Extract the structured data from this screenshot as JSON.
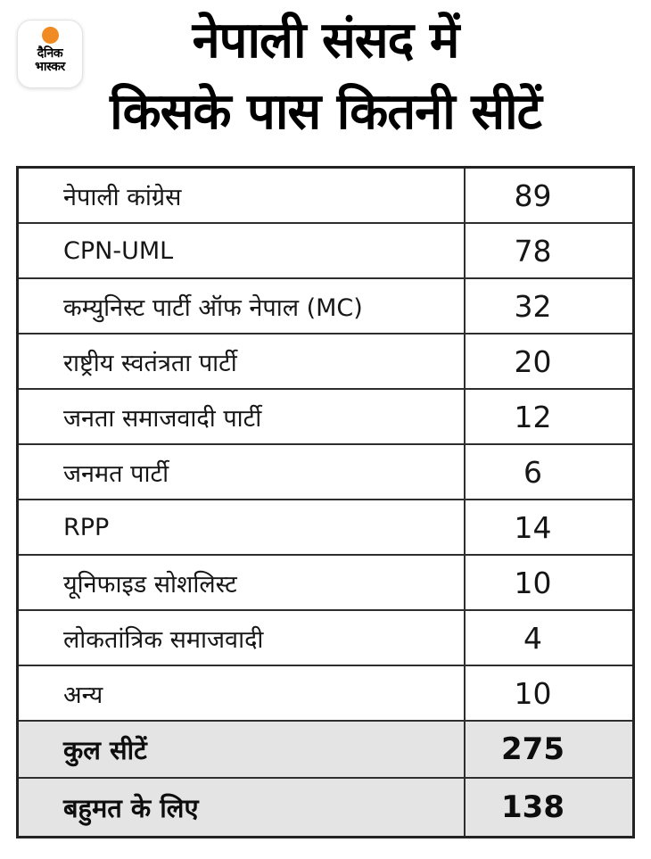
{
  "brand": {
    "logo_line1": "दैनिक",
    "logo_line2": "भास्कर"
  },
  "header": {
    "title_line1": "नेपाली संसद में",
    "title_line2": "किसके पास कितनी सीटें"
  },
  "colors": {
    "accent_orange": "#ef8b22",
    "summary_row_bg": "#e4e4e4",
    "table_border": "#222222",
    "text": "#111111"
  },
  "chart_data": {
    "type": "table",
    "title": "नेपाली संसद में किसके पास कितनी सीटें",
    "rows": [
      {
        "label": "नेपाली कांग्रेस",
        "value": 89
      },
      {
        "label": "CPN-UML",
        "value": 78
      },
      {
        "label": "कम्युनिस्ट पार्टी ऑफ नेपाल (MC)",
        "value": 32
      },
      {
        "label": "राष्ट्रीय स्वतंत्रता पार्टी",
        "value": 20
      },
      {
        "label": "जनता समाजवादी पार्टी",
        "value": 12
      },
      {
        "label": "जनमत पार्टी",
        "value": 6
      },
      {
        "label": "RPP",
        "value": 14
      },
      {
        "label": "यूनिफाइड सोशलिस्ट",
        "value": 10
      },
      {
        "label": "लोकतांत्रिक समाजवादी",
        "value": 4
      },
      {
        "label": "अन्य",
        "value": 10
      }
    ],
    "totals": [
      {
        "label": "कुल सीटें",
        "value": 275
      },
      {
        "label": "बहुमत के लिए",
        "value": 138
      }
    ]
  }
}
